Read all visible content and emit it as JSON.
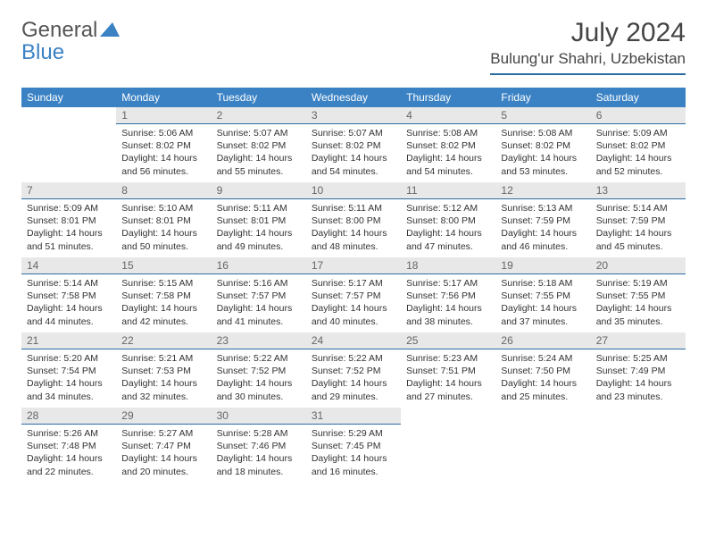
{
  "logo": {
    "general": "General",
    "blue": "Blue"
  },
  "title": "July 2024",
  "location": "Bulung'ur Shahri, Uzbekistan",
  "colors": {
    "header_bg": "#3b82c4",
    "header_underline": "#2b6ca3",
    "daynum_bg": "#e8e8e8",
    "text": "#333333"
  },
  "weekdays": [
    "Sunday",
    "Monday",
    "Tuesday",
    "Wednesday",
    "Thursday",
    "Friday",
    "Saturday"
  ],
  "weeks": [
    [
      null,
      {
        "n": "1",
        "sr": "5:06 AM",
        "ss": "8:02 PM",
        "dl": "14 hours and 56 minutes."
      },
      {
        "n": "2",
        "sr": "5:07 AM",
        "ss": "8:02 PM",
        "dl": "14 hours and 55 minutes."
      },
      {
        "n": "3",
        "sr": "5:07 AM",
        "ss": "8:02 PM",
        "dl": "14 hours and 54 minutes."
      },
      {
        "n": "4",
        "sr": "5:08 AM",
        "ss": "8:02 PM",
        "dl": "14 hours and 54 minutes."
      },
      {
        "n": "5",
        "sr": "5:08 AM",
        "ss": "8:02 PM",
        "dl": "14 hours and 53 minutes."
      },
      {
        "n": "6",
        "sr": "5:09 AM",
        "ss": "8:02 PM",
        "dl": "14 hours and 52 minutes."
      }
    ],
    [
      {
        "n": "7",
        "sr": "5:09 AM",
        "ss": "8:01 PM",
        "dl": "14 hours and 51 minutes."
      },
      {
        "n": "8",
        "sr": "5:10 AM",
        "ss": "8:01 PM",
        "dl": "14 hours and 50 minutes."
      },
      {
        "n": "9",
        "sr": "5:11 AM",
        "ss": "8:01 PM",
        "dl": "14 hours and 49 minutes."
      },
      {
        "n": "10",
        "sr": "5:11 AM",
        "ss": "8:00 PM",
        "dl": "14 hours and 48 minutes."
      },
      {
        "n": "11",
        "sr": "5:12 AM",
        "ss": "8:00 PM",
        "dl": "14 hours and 47 minutes."
      },
      {
        "n": "12",
        "sr": "5:13 AM",
        "ss": "7:59 PM",
        "dl": "14 hours and 46 minutes."
      },
      {
        "n": "13",
        "sr": "5:14 AM",
        "ss": "7:59 PM",
        "dl": "14 hours and 45 minutes."
      }
    ],
    [
      {
        "n": "14",
        "sr": "5:14 AM",
        "ss": "7:58 PM",
        "dl": "14 hours and 44 minutes."
      },
      {
        "n": "15",
        "sr": "5:15 AM",
        "ss": "7:58 PM",
        "dl": "14 hours and 42 minutes."
      },
      {
        "n": "16",
        "sr": "5:16 AM",
        "ss": "7:57 PM",
        "dl": "14 hours and 41 minutes."
      },
      {
        "n": "17",
        "sr": "5:17 AM",
        "ss": "7:57 PM",
        "dl": "14 hours and 40 minutes."
      },
      {
        "n": "18",
        "sr": "5:17 AM",
        "ss": "7:56 PM",
        "dl": "14 hours and 38 minutes."
      },
      {
        "n": "19",
        "sr": "5:18 AM",
        "ss": "7:55 PM",
        "dl": "14 hours and 37 minutes."
      },
      {
        "n": "20",
        "sr": "5:19 AM",
        "ss": "7:55 PM",
        "dl": "14 hours and 35 minutes."
      }
    ],
    [
      {
        "n": "21",
        "sr": "5:20 AM",
        "ss": "7:54 PM",
        "dl": "14 hours and 34 minutes."
      },
      {
        "n": "22",
        "sr": "5:21 AM",
        "ss": "7:53 PM",
        "dl": "14 hours and 32 minutes."
      },
      {
        "n": "23",
        "sr": "5:22 AM",
        "ss": "7:52 PM",
        "dl": "14 hours and 30 minutes."
      },
      {
        "n": "24",
        "sr": "5:22 AM",
        "ss": "7:52 PM",
        "dl": "14 hours and 29 minutes."
      },
      {
        "n": "25",
        "sr": "5:23 AM",
        "ss": "7:51 PM",
        "dl": "14 hours and 27 minutes."
      },
      {
        "n": "26",
        "sr": "5:24 AM",
        "ss": "7:50 PM",
        "dl": "14 hours and 25 minutes."
      },
      {
        "n": "27",
        "sr": "5:25 AM",
        "ss": "7:49 PM",
        "dl": "14 hours and 23 minutes."
      }
    ],
    [
      {
        "n": "28",
        "sr": "5:26 AM",
        "ss": "7:48 PM",
        "dl": "14 hours and 22 minutes."
      },
      {
        "n": "29",
        "sr": "5:27 AM",
        "ss": "7:47 PM",
        "dl": "14 hours and 20 minutes."
      },
      {
        "n": "30",
        "sr": "5:28 AM",
        "ss": "7:46 PM",
        "dl": "14 hours and 18 minutes."
      },
      {
        "n": "31",
        "sr": "5:29 AM",
        "ss": "7:45 PM",
        "dl": "14 hours and 16 minutes."
      },
      null,
      null,
      null
    ]
  ],
  "labels": {
    "sunrise": "Sunrise:",
    "sunset": "Sunset:",
    "daylight": "Daylight:"
  }
}
